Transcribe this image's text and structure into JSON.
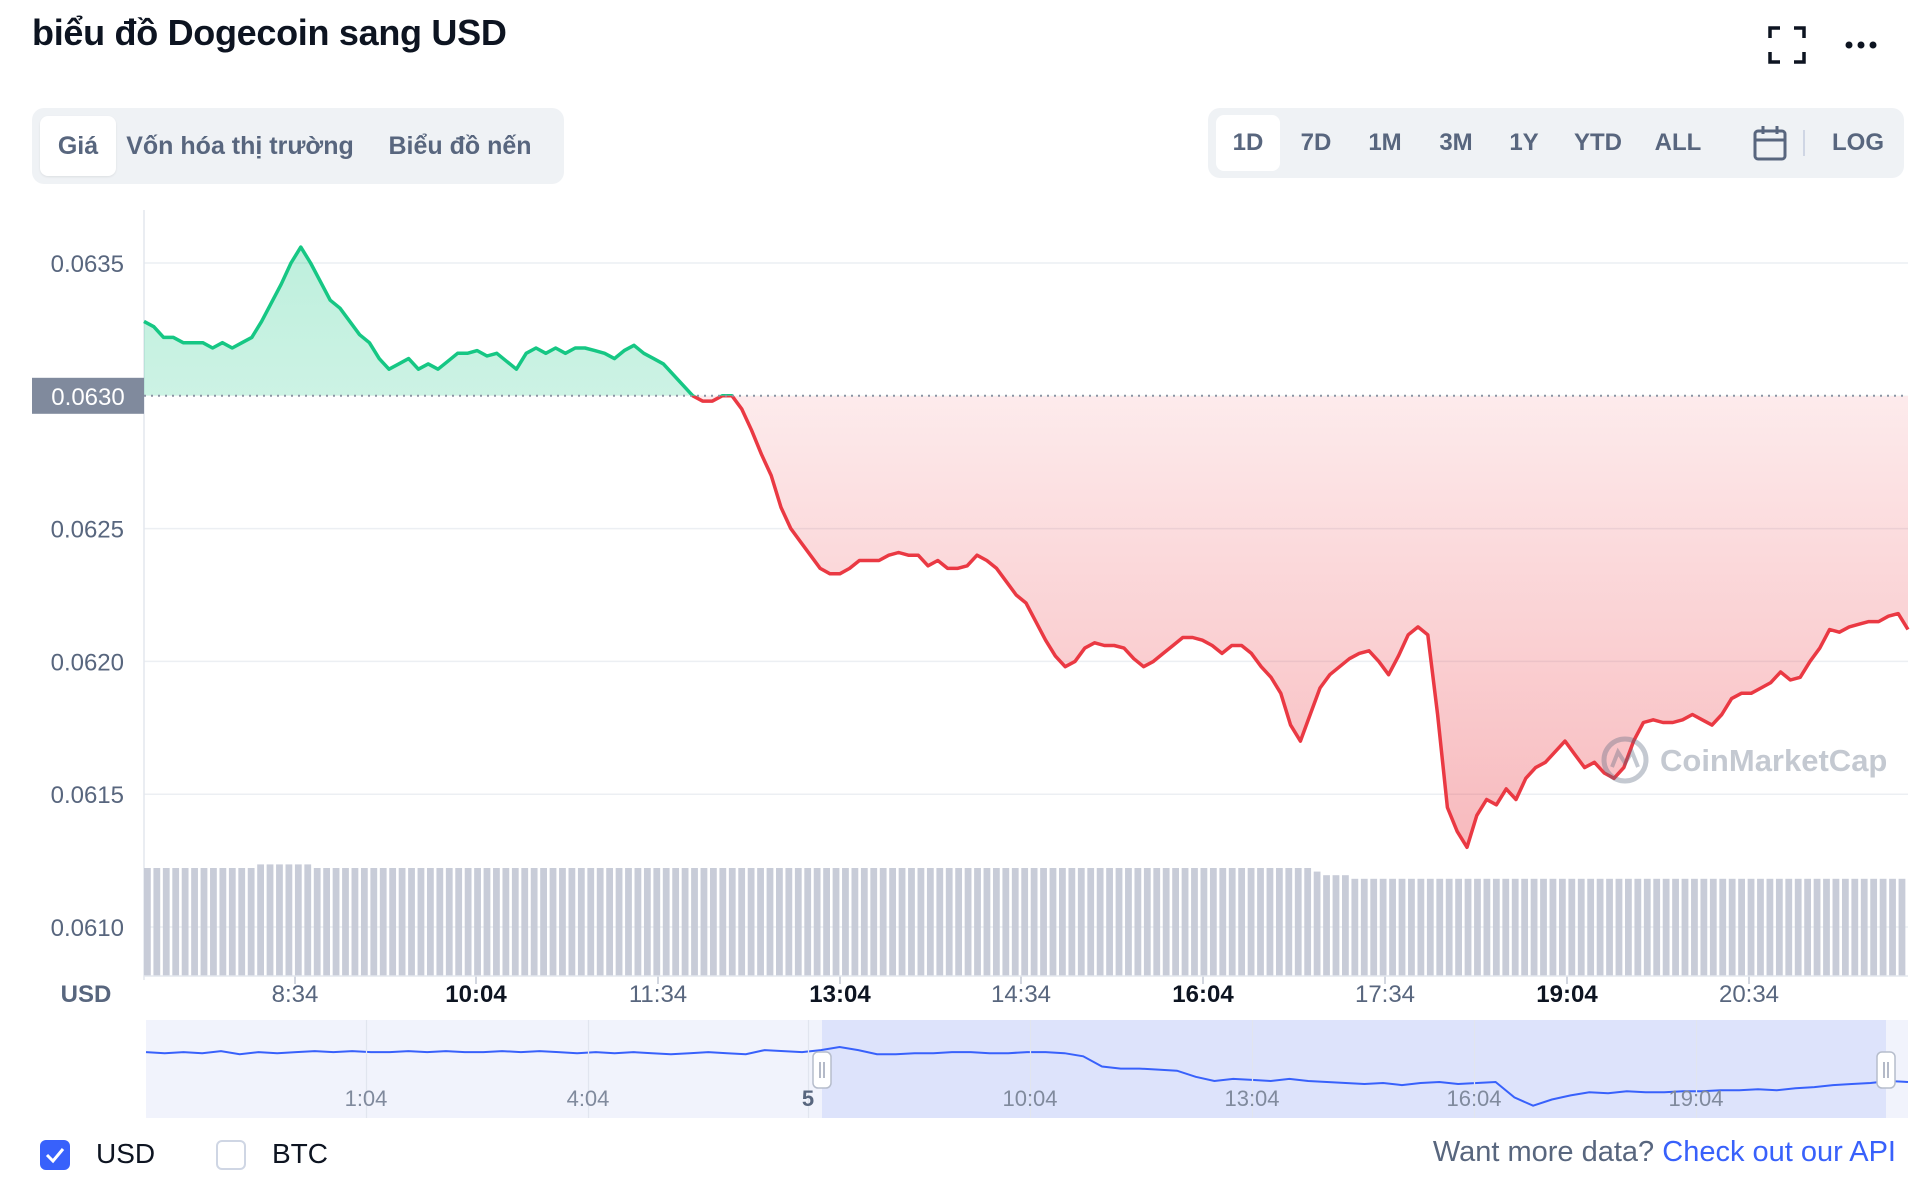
{
  "title": "biểu đồ Dogecoin sang USD",
  "view_tabs": [
    {
      "label": "Giá",
      "active": true
    },
    {
      "label": "Vốn hóa thị trường",
      "active": false
    },
    {
      "label": "Biểu đồ nến",
      "active": false
    }
  ],
  "range_tabs": [
    {
      "label": "1D",
      "active": true
    },
    {
      "label": "7D",
      "active": false
    },
    {
      "label": "1M",
      "active": false
    },
    {
      "label": "3M",
      "active": false
    },
    {
      "label": "1Y",
      "active": false
    },
    {
      "label": "YTD",
      "active": false
    },
    {
      "label": "ALL",
      "active": false
    }
  ],
  "log_label": "LOG",
  "icons": {
    "fullscreen": "expand-icon",
    "more": "more-horizontal-icon",
    "calendar": "calendar-icon"
  },
  "colors": {
    "up": "#16c784",
    "down": "#ea3943",
    "accent": "#3861fb",
    "volume": "#c8ccd8",
    "navigator_line": "#3861fb",
    "navigator_fill": "#e8ebfd"
  },
  "footer": {
    "currencies": [
      {
        "label": "USD",
        "checked": true
      },
      {
        "label": "BTC",
        "checked": false
      }
    ],
    "api_prefix": "Want more data?",
    "api_link": "Check out our API"
  },
  "watermark": "CoinMarketCap",
  "chart_data": {
    "type": "area",
    "ylabel": "USD",
    "ylim": [
      0.0608,
      0.0637
    ],
    "yticks": [
      "0.0635",
      "0.0625",
      "0.0620",
      "0.0615",
      "0.0610"
    ],
    "baseline": 0.063,
    "baseline_label": "0.0630",
    "xticks": [
      {
        "label": "8:34",
        "bold": false
      },
      {
        "label": "10:04",
        "bold": true
      },
      {
        "label": "11:34",
        "bold": false
      },
      {
        "label": "13:04",
        "bold": true
      },
      {
        "label": "14:34",
        "bold": false
      },
      {
        "label": "16:04",
        "bold": true
      },
      {
        "label": "17:34",
        "bold": false
      },
      {
        "label": "19:04",
        "bold": true
      },
      {
        "label": "20:34",
        "bold": false
      }
    ],
    "series": [
      {
        "values": [
          0.06328,
          0.06326,
          0.06322,
          0.06322,
          0.0632,
          0.0632,
          0.0632,
          0.06318,
          0.0632,
          0.06318,
          0.0632,
          0.06322,
          0.06328,
          0.06335,
          0.06342,
          0.0635,
          0.06356,
          0.0635,
          0.06343,
          0.06336,
          0.06333,
          0.06328,
          0.06323,
          0.0632,
          0.06314,
          0.0631,
          0.06312,
          0.06314,
          0.0631,
          0.06312,
          0.0631,
          0.06313,
          0.06316,
          0.06316,
          0.06317,
          0.06315,
          0.06316,
          0.06313,
          0.0631,
          0.06316,
          0.06318,
          0.06316,
          0.06318,
          0.06316,
          0.06318,
          0.06318,
          0.06317,
          0.06316,
          0.06314,
          0.06317,
          0.06319,
          0.06316,
          0.06314,
          0.06312,
          0.06308,
          0.06304,
          0.063,
          0.06298,
          0.06298,
          0.063,
          0.063,
          0.06295,
          0.06287,
          0.06278,
          0.0627,
          0.06258,
          0.0625,
          0.06245,
          0.0624,
          0.06235,
          0.06233,
          0.06233,
          0.06235,
          0.06238,
          0.06238,
          0.06238,
          0.0624,
          0.06241,
          0.0624,
          0.0624,
          0.06236,
          0.06238,
          0.06235,
          0.06235,
          0.06236,
          0.0624,
          0.06238,
          0.06235,
          0.0623,
          0.06225,
          0.06222,
          0.06215,
          0.06208,
          0.06202,
          0.06198,
          0.062,
          0.06205,
          0.06207,
          0.06206,
          0.06206,
          0.06205,
          0.06201,
          0.06198,
          0.062,
          0.06203,
          0.06206,
          0.06209,
          0.06209,
          0.06208,
          0.06206,
          0.06203,
          0.06206,
          0.06206,
          0.06203,
          0.06198,
          0.06194,
          0.06188,
          0.06176,
          0.0617,
          0.0618,
          0.0619,
          0.06195,
          0.06198,
          0.06201,
          0.06203,
          0.06204,
          0.062,
          0.06195,
          0.06202,
          0.0621,
          0.06213,
          0.0621,
          0.0618,
          0.06145,
          0.06136,
          0.0613,
          0.06142,
          0.06148,
          0.06146,
          0.06152,
          0.06148,
          0.06156,
          0.0616,
          0.06162,
          0.06166,
          0.0617,
          0.06165,
          0.0616,
          0.06162,
          0.06158,
          0.06156,
          0.0616,
          0.0617,
          0.06177,
          0.06178,
          0.06177,
          0.06177,
          0.06178,
          0.0618,
          0.06178,
          0.06176,
          0.0618,
          0.06186,
          0.06188,
          0.06188,
          0.0619,
          0.06192,
          0.06196,
          0.06193,
          0.06194,
          0.062,
          0.06205,
          0.06212,
          0.06211,
          0.06213,
          0.06214,
          0.06215,
          0.06215,
          0.06217,
          0.06218,
          0.06212
        ]
      }
    ],
    "volume": [
      0.3,
      0.3,
      0.3,
      0.3,
      0.3,
      0.3,
      0.3,
      0.3,
      0.3,
      0.3,
      0.3,
      0.3,
      0.31,
      0.31,
      0.31,
      0.31,
      0.31,
      0.31,
      0.3,
      0.3,
      0.3,
      0.3,
      0.3,
      0.3,
      0.3,
      0.3,
      0.3,
      0.3,
      0.3,
      0.3,
      0.3,
      0.3,
      0.3,
      0.3,
      0.3,
      0.3,
      0.3,
      0.3,
      0.3,
      0.3,
      0.3,
      0.3,
      0.3,
      0.3,
      0.3,
      0.3,
      0.3,
      0.3,
      0.3,
      0.3,
      0.3,
      0.3,
      0.3,
      0.3,
      0.3,
      0.3,
      0.3,
      0.3,
      0.3,
      0.3,
      0.3,
      0.3,
      0.3,
      0.3,
      0.3,
      0.3,
      0.3,
      0.3,
      0.3,
      0.3,
      0.3,
      0.3,
      0.3,
      0.3,
      0.3,
      0.3,
      0.3,
      0.3,
      0.3,
      0.3,
      0.3,
      0.3,
      0.3,
      0.3,
      0.3,
      0.3,
      0.3,
      0.3,
      0.3,
      0.3,
      0.3,
      0.3,
      0.3,
      0.3,
      0.3,
      0.3,
      0.3,
      0.3,
      0.3,
      0.3,
      0.3,
      0.3,
      0.3,
      0.3,
      0.3,
      0.3,
      0.3,
      0.3,
      0.3,
      0.3,
      0.3,
      0.3,
      0.3,
      0.3,
      0.3,
      0.3,
      0.3,
      0.3,
      0.3,
      0.3,
      0.3,
      0.3,
      0.3,
      0.3,
      0.29,
      0.28,
      0.28,
      0.28,
      0.27,
      0.27,
      0.27,
      0.27,
      0.27,
      0.27,
      0.27,
      0.27,
      0.27,
      0.27,
      0.27,
      0.27,
      0.27,
      0.27,
      0.27,
      0.27,
      0.27,
      0.27,
      0.27,
      0.27,
      0.27,
      0.27,
      0.27,
      0.27,
      0.27,
      0.27,
      0.27,
      0.27,
      0.27,
      0.27,
      0.27,
      0.27,
      0.27,
      0.27,
      0.27,
      0.27,
      0.27,
      0.27,
      0.27,
      0.27,
      0.27,
      0.27,
      0.27,
      0.27,
      0.27,
      0.27,
      0.27,
      0.27,
      0.27,
      0.27,
      0.27,
      0.27,
      0.27,
      0.27,
      0.27,
      0.27,
      0.27,
      0.27,
      0.27
    ],
    "navigator": {
      "xticks": [
        "1:04",
        "4:04",
        "5",
        "10:04",
        "13:04",
        "16:04",
        "19:04"
      ],
      "values": [
        0.64,
        0.63,
        0.64,
        0.63,
        0.65,
        0.62,
        0.64,
        0.63,
        0.64,
        0.65,
        0.64,
        0.65,
        0.64,
        0.64,
        0.65,
        0.64,
        0.65,
        0.64,
        0.64,
        0.65,
        0.64,
        0.65,
        0.64,
        0.63,
        0.64,
        0.63,
        0.64,
        0.63,
        0.62,
        0.63,
        0.64,
        0.63,
        0.62,
        0.66,
        0.65,
        0.64,
        0.66,
        0.69,
        0.66,
        0.62,
        0.62,
        0.63,
        0.63,
        0.64,
        0.64,
        0.63,
        0.63,
        0.64,
        0.64,
        0.63,
        0.6,
        0.5,
        0.48,
        0.48,
        0.47,
        0.46,
        0.4,
        0.36,
        0.38,
        0.37,
        0.36,
        0.38,
        0.36,
        0.35,
        0.34,
        0.33,
        0.34,
        0.32,
        0.34,
        0.35,
        0.33,
        0.34,
        0.35,
        0.2,
        0.12,
        0.18,
        0.22,
        0.25,
        0.24,
        0.26,
        0.25,
        0.25,
        0.26,
        0.26,
        0.27,
        0.27,
        0.28,
        0.27,
        0.29,
        0.3,
        0.32,
        0.33,
        0.34,
        0.36,
        0.35
      ]
    }
  }
}
